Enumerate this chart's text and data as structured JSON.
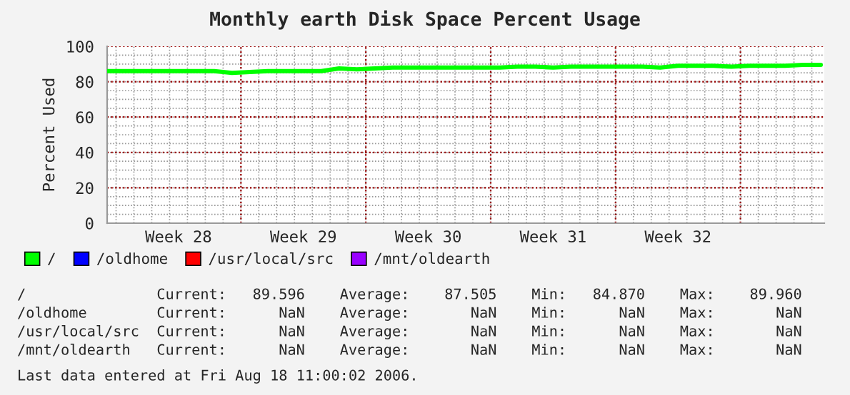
{
  "chart_data": {
    "type": "line",
    "title": "Monthly earth Disk Space Percent Usage",
    "ylabel": "Percent Used",
    "categories": [
      null,
      null,
      null,
      null,
      "Week 28",
      null,
      null,
      null,
      null,
      null,
      null,
      "Week 29",
      null,
      null,
      null,
      null,
      null,
      null,
      "Week 30",
      null,
      null,
      null,
      null,
      null,
      null,
      "Week 31",
      null,
      null,
      null,
      null,
      null,
      null,
      "Week 32",
      null,
      null,
      null,
      null,
      null,
      null,
      null,
      null
    ],
    "series": [
      {
        "name": "/",
        "color": "#00ff00",
        "values": [
          86,
          86,
          86,
          86,
          86,
          86,
          86,
          85,
          85.5,
          86,
          86,
          86,
          86,
          87.5,
          87,
          87.5,
          88,
          88,
          88,
          88,
          88,
          88,
          88,
          88.5,
          88.5,
          88,
          88.5,
          88.5,
          88.5,
          88.5,
          88.5,
          88,
          89,
          89,
          89,
          88.5,
          89,
          89,
          89,
          89.5,
          89.5
        ]
      },
      {
        "name": "/oldhome",
        "color": "#0000ff",
        "values": [
          null,
          null,
          null,
          null,
          null,
          null,
          null,
          null,
          null,
          null,
          null,
          null,
          null,
          null,
          null,
          null,
          null,
          null,
          null,
          null,
          null,
          null,
          null,
          null,
          null,
          null,
          null,
          null,
          null,
          null,
          null,
          null,
          null,
          null,
          null,
          null,
          null,
          null,
          null,
          null,
          null
        ]
      },
      {
        "name": "/usr/local/src",
        "color": "#ff0000",
        "values": [
          null,
          null,
          null,
          null,
          null,
          null,
          null,
          null,
          null,
          null,
          null,
          null,
          null,
          null,
          null,
          null,
          null,
          null,
          null,
          null,
          null,
          null,
          null,
          null,
          null,
          null,
          null,
          null,
          null,
          null,
          null,
          null,
          null,
          null,
          null,
          null,
          null,
          null,
          null,
          null,
          null
        ]
      },
      {
        "name": "/mnt/oldearth",
        "color": "#9900ff",
        "values": [
          null,
          null,
          null,
          null,
          null,
          null,
          null,
          null,
          null,
          null,
          null,
          null,
          null,
          null,
          null,
          null,
          null,
          null,
          null,
          null,
          null,
          null,
          null,
          null,
          null,
          null,
          null,
          null,
          null,
          null,
          null,
          null,
          null,
          null,
          null,
          null,
          null,
          null,
          null,
          null,
          null
        ]
      }
    ],
    "ylim": [
      0,
      100
    ],
    "yticks": [
      0,
      20,
      40,
      60,
      80,
      100
    ],
    "grid": true,
    "legend": "bottom",
    "marker": "none",
    "line_style": "solid",
    "annotations": [
      "/               Current:   89.596    Average:    87.505    Min:   84.870    Max:    89.960",
      "/oldhome        Current:      NaN    Average:       NaN    Min:      NaN    Max:       NaN",
      "/usr/local/src  Current:      NaN    Average:       NaN    Min:      NaN    Max:       NaN",
      "/mnt/oldearth   Current:      NaN    Average:       NaN    Min:      NaN    Max:       NaN",
      "Last data entered at Fri Aug 18 11:00:02 2006."
    ]
  }
}
